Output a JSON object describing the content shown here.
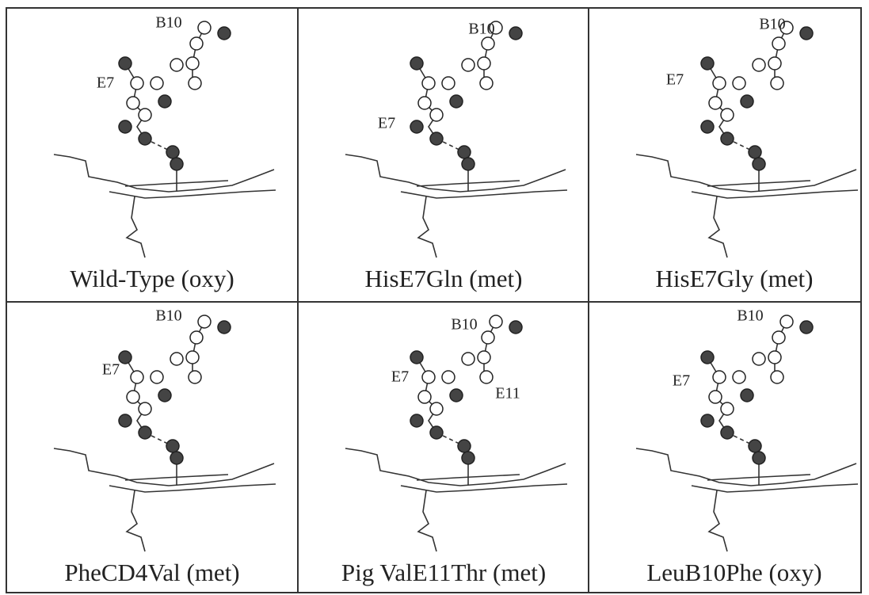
{
  "panels": [
    {
      "caption": "Wild-Type (oxy)",
      "labels": [
        "B10",
        "E7"
      ]
    },
    {
      "caption": "HisE7Gln (met)",
      "labels": [
        "B10",
        "E7"
      ]
    },
    {
      "caption": "HisE7Gly (met)",
      "labels": [
        "B10",
        "E7"
      ]
    },
    {
      "caption": "PheCD4Val (met)",
      "labels": [
        "B10",
        "E7"
      ]
    },
    {
      "caption": "Pig ValE11Thr (met)",
      "labels": [
        "B10",
        "E7",
        "E11"
      ]
    },
    {
      "caption": "LeuB10Phe (oxy)",
      "labels": [
        "B10",
        "E7"
      ]
    }
  ]
}
